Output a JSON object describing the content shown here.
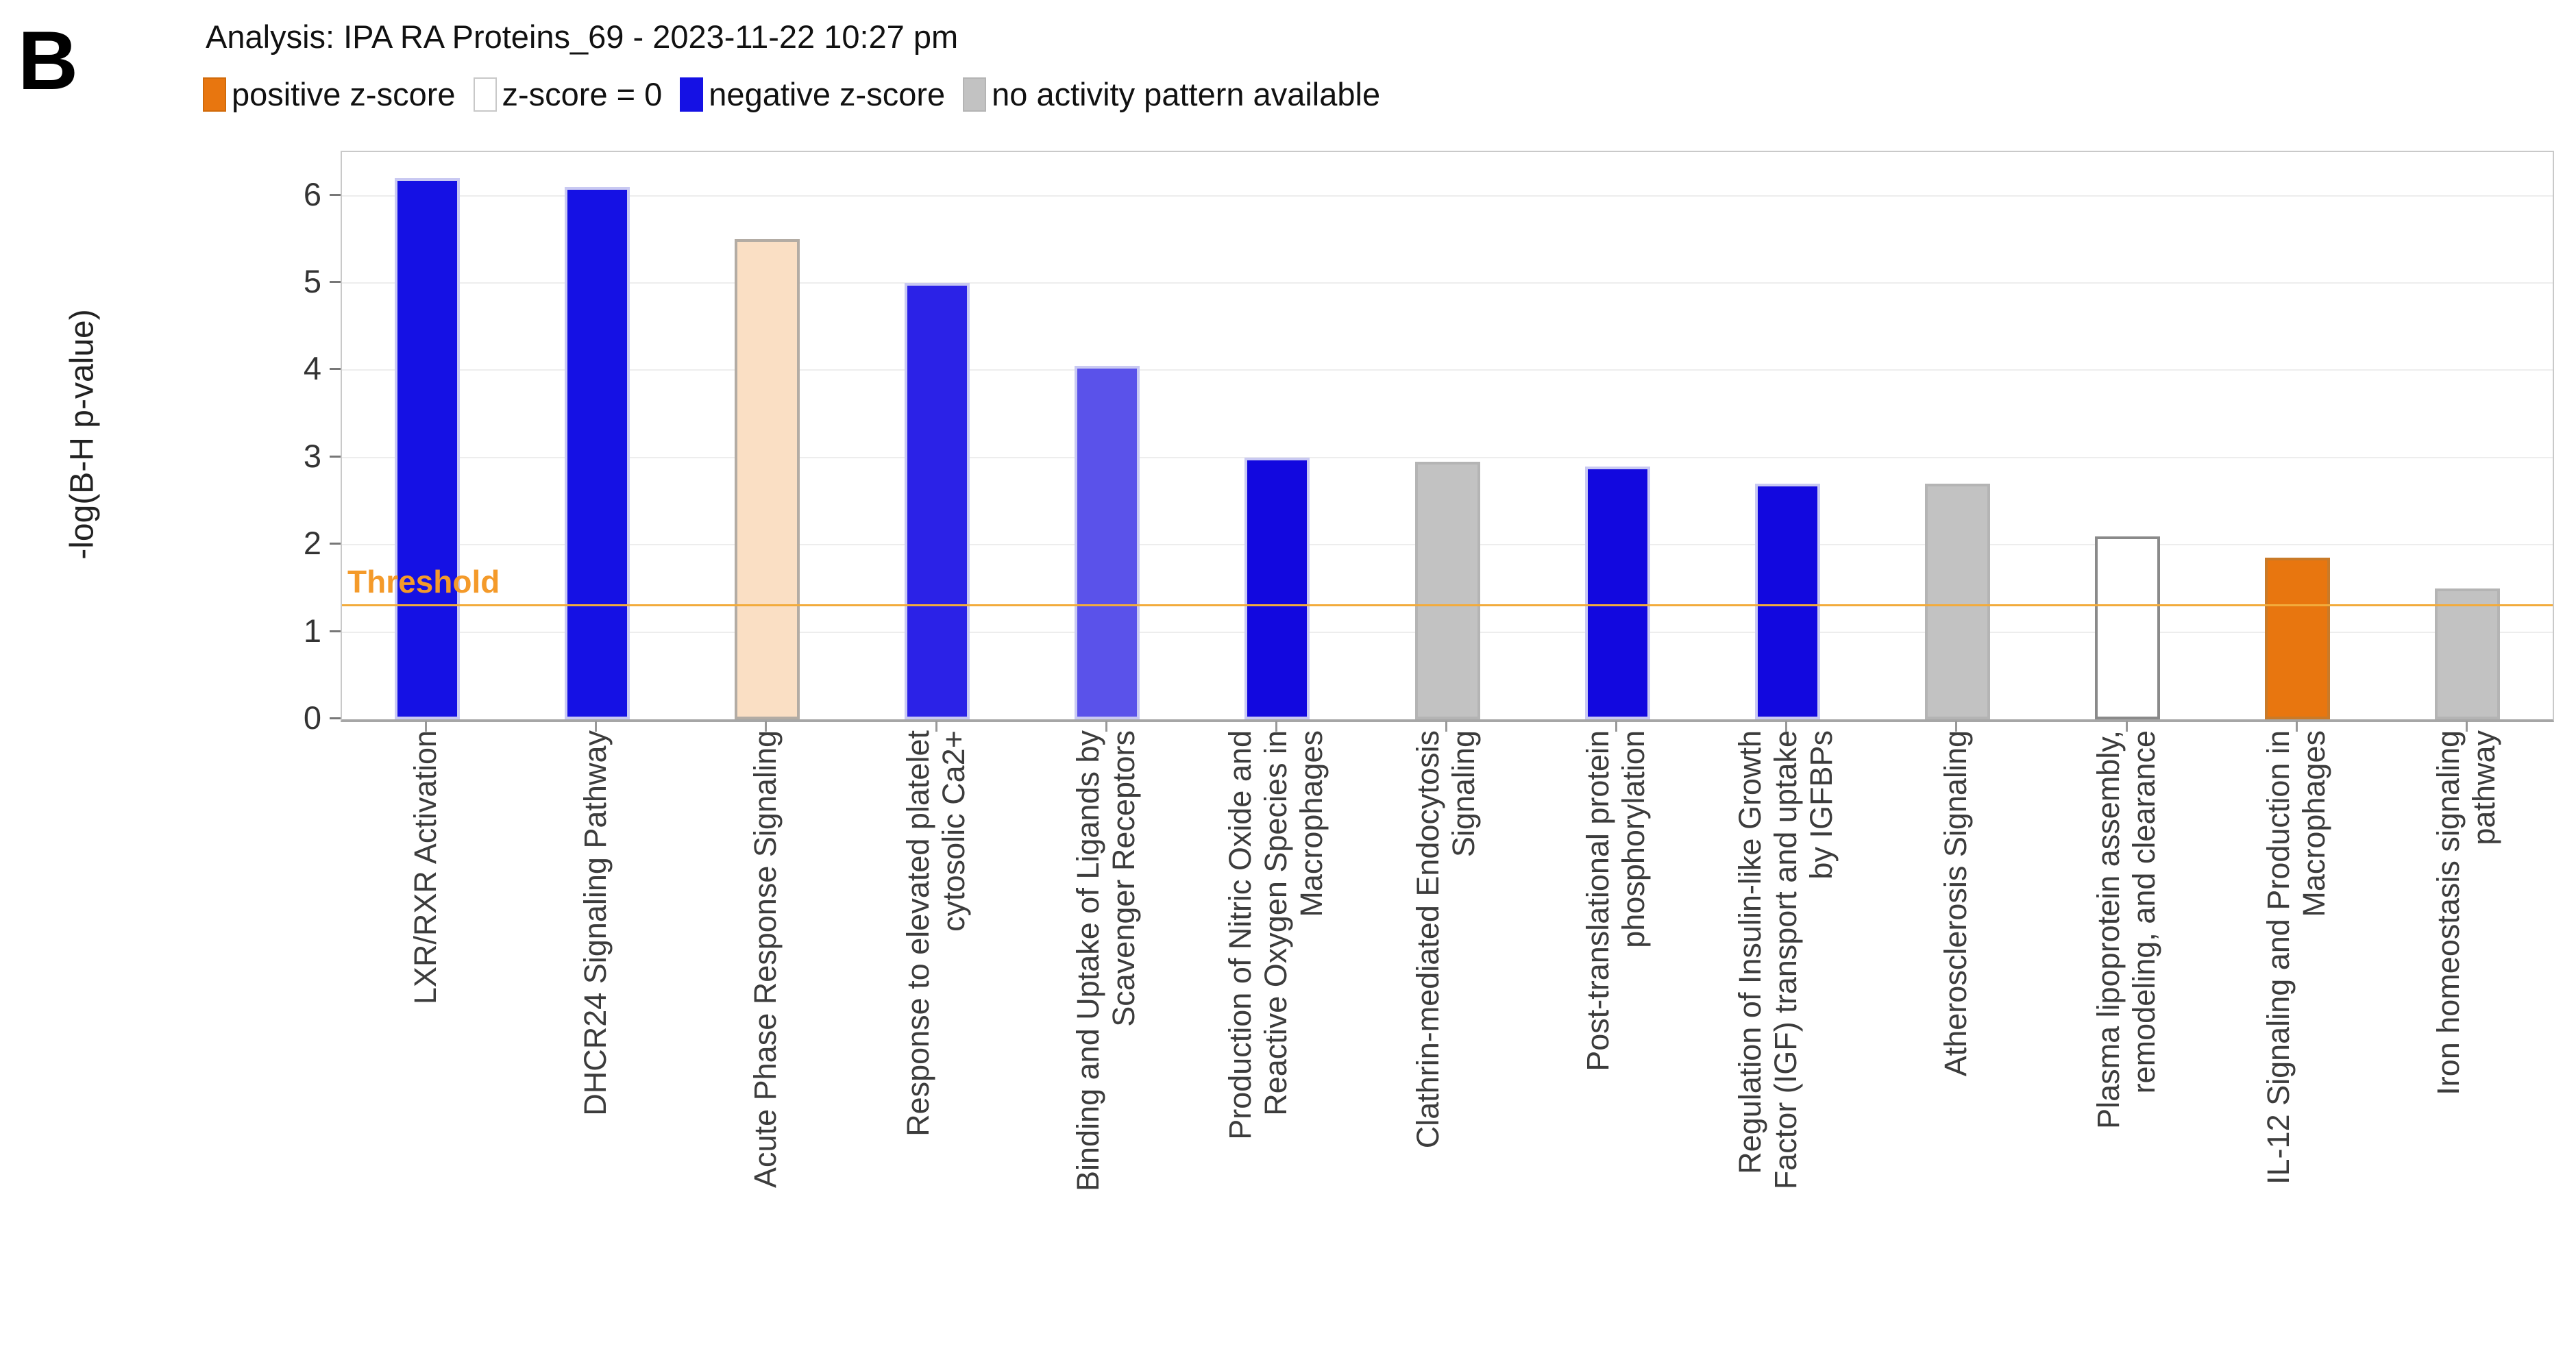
{
  "panel_label": "B",
  "header": {
    "title": "Analysis: IPA RA Proteins_69 - 2023-11-22 10:27 pm"
  },
  "chart_data": {
    "type": "bar",
    "title": "Analysis: IPA RA Proteins_69 - 2023-11-22 10:27 pm",
    "xlabel": "",
    "ylabel": "-log(B-H p-value)",
    "ylim": [
      0,
      6.5
    ],
    "yticks": [
      0,
      1,
      2,
      3,
      4,
      5,
      6
    ],
    "grid": "horizontal",
    "legend_position": "top",
    "threshold": {
      "value": 1.3,
      "label": "Threshold",
      "color": "#f2ab3c"
    },
    "legend": [
      {
        "label": "positive z-score",
        "color": "#e8760f",
        "border": "#d06a0a"
      },
      {
        "label": "z-score = 0",
        "color": "#ffffff",
        "border": "#c8c8c8"
      },
      {
        "label": "negative z-score",
        "color": "#1511e4",
        "border": "#1511e4"
      },
      {
        "label": "no activity pattern available",
        "color": "#c2c2c2",
        "border": "#b4b4b4"
      }
    ],
    "bars": [
      {
        "category": "LXR/RXR Activation",
        "lines": [
          "LXR/RXR Activation"
        ],
        "value": 6.2,
        "z_group": "negative z-score",
        "color": "#1511e4",
        "border": "#c9c9f2"
      },
      {
        "category": "DHCR24 Signaling Pathway",
        "lines": [
          "DHCR24 Signaling Pathway"
        ],
        "value": 6.1,
        "z_group": "negative z-score",
        "color": "#1511e4",
        "border": "#c9c9f2"
      },
      {
        "category": "Acute Phase Response Signaling",
        "lines": [
          "Acute Phase Response Signaling"
        ],
        "value": 5.5,
        "z_group": "positive z-score (weak)",
        "color": "#fadfc4",
        "border": "#b3aca4"
      },
      {
        "category": "Response to elevated platelet cytosolic Ca2+",
        "lines": [
          "Response to elevated platelet",
          "cytosolic Ca2+"
        ],
        "value": 5.0,
        "z_group": "negative z-score",
        "color": "#2b22e7",
        "border": "#c9c9f2"
      },
      {
        "category": "Binding and Uptake of Ligands by Scavenger Receptors",
        "lines": [
          "Binding and Uptake of Ligands by",
          "Scavenger Receptors"
        ],
        "value": 4.05,
        "z_group": "negative z-score (weak)",
        "color": "#5a52ea",
        "border": "#c9c9f2"
      },
      {
        "category": "Production of Nitric Oxide and Reactive Oxygen Species in Macrophages",
        "lines": [
          "Production of Nitric Oxide and",
          "Reactive Oxygen Species in",
          "Macrophages"
        ],
        "value": 3.0,
        "z_group": "negative z-score",
        "color": "#1208df",
        "border": "#c9c9f2"
      },
      {
        "category": "Clathrin-mediated Endocytosis Signaling",
        "lines": [
          "Clathrin-mediated Endocytosis",
          "Signaling"
        ],
        "value": 2.95,
        "z_group": "no activity pattern available",
        "color": "#c2c2c2",
        "border": "#b4b4b4"
      },
      {
        "category": "Post-translational protein phosphorylation",
        "lines": [
          "Post-translational protein",
          "phosphorylation"
        ],
        "value": 2.9,
        "z_group": "negative z-score",
        "color": "#1208df",
        "border": "#c9c9f2"
      },
      {
        "category": "Regulation of Insulin-like Growth Factor (IGF) transport and uptake by IGFBPs",
        "lines": [
          "Regulation of Insulin-like Growth",
          "Factor (IGF) transport and uptake",
          "by IGFBPs"
        ],
        "value": 2.7,
        "z_group": "negative z-score",
        "color": "#1208df",
        "border": "#c9c9f2"
      },
      {
        "category": "Atherosclerosis Signaling",
        "lines": [
          "Atherosclerosis Signaling"
        ],
        "value": 2.7,
        "z_group": "no activity pattern available",
        "color": "#c2c2c2",
        "border": "#b4b4b4"
      },
      {
        "category": "Plasma lipoprotein assembly, remodeling, and clearance",
        "lines": [
          "Plasma lipoprotein assembly,",
          "remodeling, and clearance"
        ],
        "value": 2.1,
        "z_group": "z-score = 0",
        "color": "#ffffff",
        "border": "#8a8a8a"
      },
      {
        "category": "IL-12 Signaling and Production in Macrophages",
        "lines": [
          "IL-12 Signaling and Production in",
          "Macrophages"
        ],
        "value": 1.85,
        "z_group": "positive z-score",
        "color": "#e8760f",
        "border": "#c97a28"
      },
      {
        "category": "Iron homeostasis signaling pathway",
        "lines": [
          "Iron homeostasis signaling",
          "pathway"
        ],
        "value": 1.5,
        "z_group": "no activity pattern available",
        "color": "#c2c2c2",
        "border": "#b4b4b4"
      }
    ]
  }
}
